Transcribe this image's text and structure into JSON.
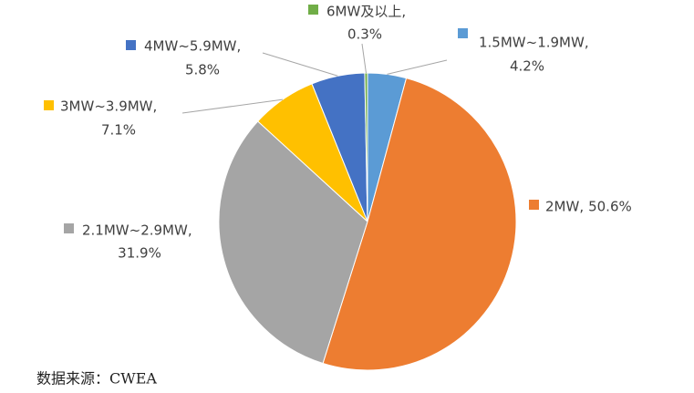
{
  "chart_data": {
    "type": "pie",
    "categories": [
      "1.5MW~1.9MW,",
      "2MW,",
      "2.1MW~2.9MW,",
      "3MW~3.9MW,",
      "4MW~5.9MW,",
      "6MW及以上,"
    ],
    "values": [
      4.2,
      50.6,
      31.9,
      7.1,
      5.8,
      0.3
    ],
    "value_labels": [
      "4.2%",
      "50.6%",
      "31.9%",
      "7.1%",
      "5.8%",
      "0.3%"
    ],
    "colors": [
      "#5b9bd5",
      "#ed7d31",
      "#a5a5a5",
      "#ffc000",
      "#4472c4",
      "#70ad47"
    ],
    "source": "数据来源：CWEA"
  }
}
